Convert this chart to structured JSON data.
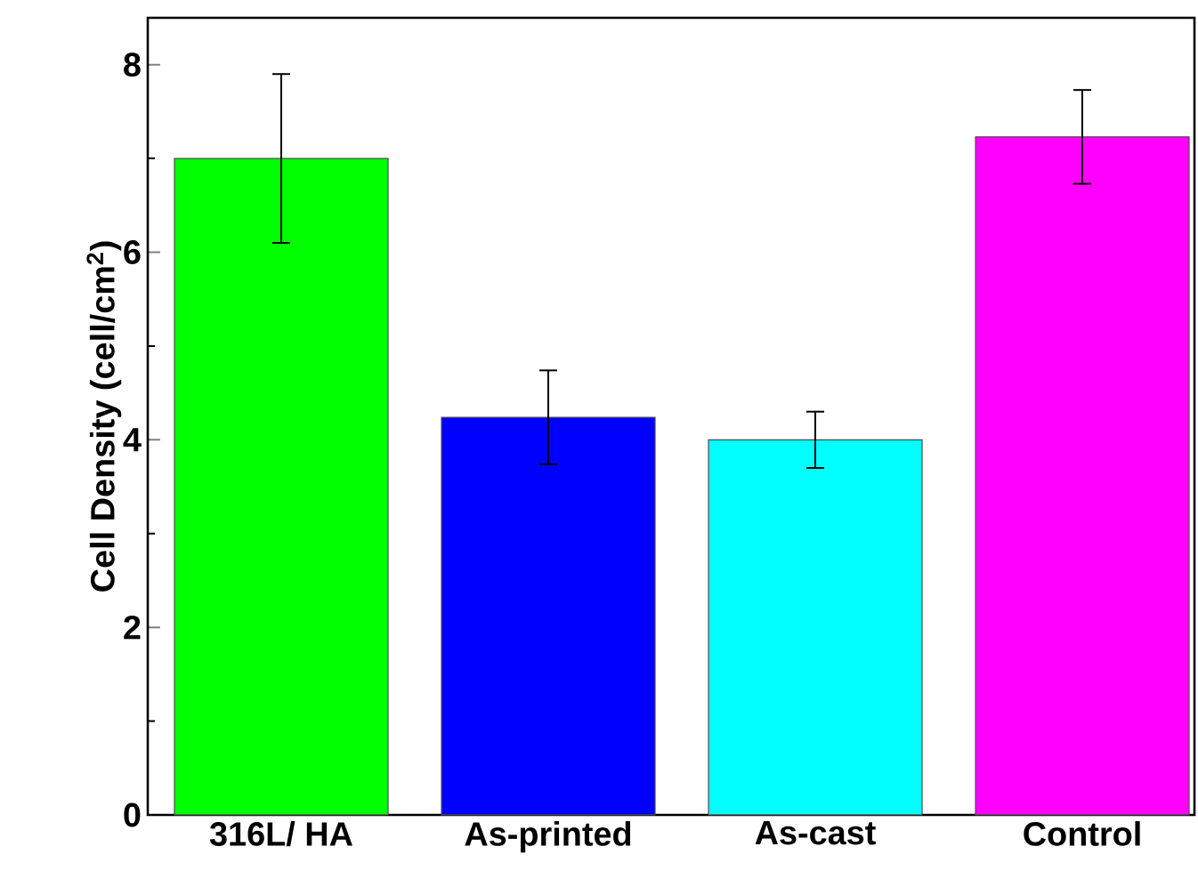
{
  "chart_data": {
    "type": "bar",
    "ylabel": "Cell Density (cell/cm$^{2}$)",
    "categories": [
      "316L/ HA",
      "As-printed",
      "As-cast",
      "Control"
    ],
    "values": [
      7.0,
      4.24,
      4.0,
      7.23
    ],
    "colors": [
      "#00ff00",
      "#0000ff",
      "#00ffff",
      "#ff00ff"
    ],
    "errors": [
      [
        6.1,
        7.9
      ],
      0.5,
      0.3,
      0.5
    ],
    "ylim": [
      0,
      8.5
    ],
    "yticks": [
      0,
      2,
      4,
      6,
      8
    ],
    "grid": false
  }
}
